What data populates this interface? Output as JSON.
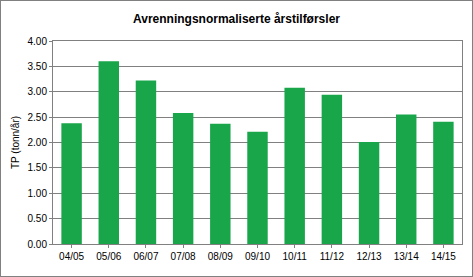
{
  "chart_data": {
    "type": "bar",
    "title": "Avrenningsnormaliserte årstilførsler",
    "y_label": "TP (tonn/år)",
    "categories": [
      "04/05",
      "05/06",
      "06/07",
      "07/08",
      "08/09",
      "09/10",
      "10/11",
      "11/12",
      "12/13",
      "13/14",
      "14/15"
    ],
    "values": [
      2.38,
      3.6,
      3.22,
      2.58,
      2.37,
      2.21,
      3.08,
      2.94,
      2.01,
      2.55,
      2.41
    ],
    "color": "#19a64a",
    "ylim": [
      0,
      4
    ],
    "yticks": [
      {
        "value": 0,
        "label": "0.00"
      },
      {
        "value": 0.5,
        "label": "0.50"
      },
      {
        "value": 1,
        "label": "1.00"
      },
      {
        "value": 1.5,
        "label": "1.50"
      },
      {
        "value": 2,
        "label": "2.00"
      },
      {
        "value": 2.5,
        "label": "2.50"
      },
      {
        "value": 3,
        "label": "3.00"
      },
      {
        "value": 3.5,
        "label": "3.50"
      },
      {
        "value": 4,
        "label": "4.00"
      }
    ],
    "grid": true
  }
}
